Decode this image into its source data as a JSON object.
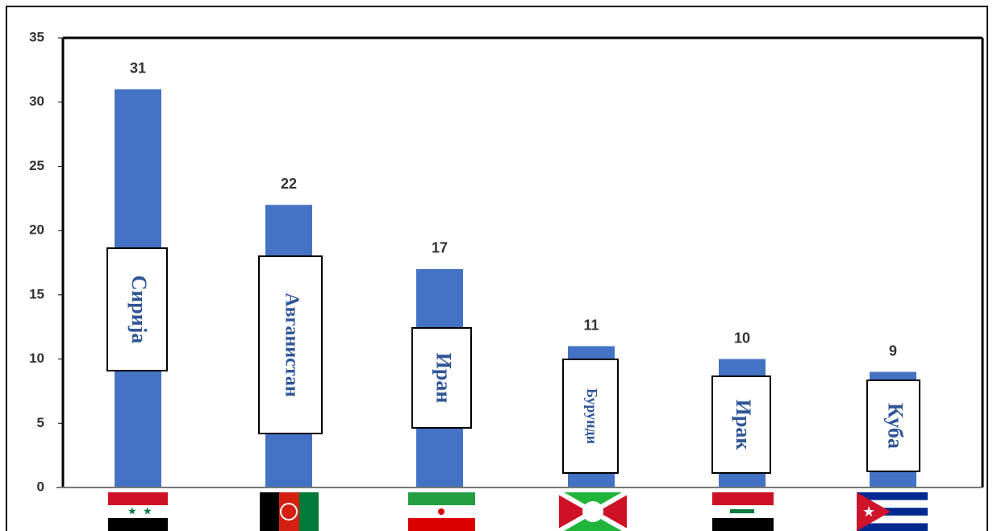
{
  "chart_data": {
    "type": "bar",
    "categories": [
      "Сирија",
      "Авганистан",
      "Иран",
      "Бурунди",
      "Ирак",
      "Куба"
    ],
    "values": [
      31,
      22,
      17,
      11,
      10,
      9
    ],
    "color": "#4472c4",
    "ylim": [
      0,
      35
    ],
    "yticks": [
      0,
      5,
      10,
      15,
      20,
      25,
      30,
      35
    ],
    "grid": false
  }
}
